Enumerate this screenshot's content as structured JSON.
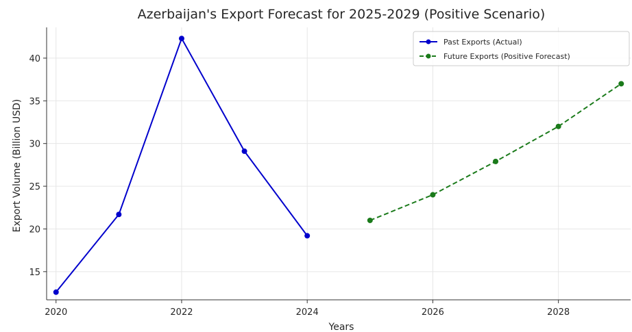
{
  "chart_data": {
    "type": "line",
    "title": "Azerbaijan's Export Forecast for 2025-2029 (Positive Scenario)",
    "xlabel": "Years",
    "ylabel": "Export Volume (Billion USD)",
    "xlim": [
      2019.85,
      2029.15
    ],
    "ylim": [
      11.7,
      43.6
    ],
    "xticks": [
      2020,
      2022,
      2024,
      2026,
      2028
    ],
    "yticks": [
      15,
      20,
      25,
      30,
      35,
      40
    ],
    "grid": true,
    "legend_position": "top-right",
    "series": [
      {
        "name": "Past Exports (Actual)",
        "color": "#0000cc",
        "line_style": "solid",
        "marker": "circle",
        "x": [
          2020,
          2021,
          2022,
          2023,
          2024
        ],
        "y": [
          12.6,
          21.7,
          42.3,
          29.1,
          19.2
        ]
      },
      {
        "name": "Future Exports (Positive Forecast)",
        "color": "#1a7a1a",
        "line_style": "dashed",
        "marker": "circle",
        "x": [
          2025,
          2026,
          2027,
          2028,
          2029
        ],
        "y": [
          21.0,
          24.0,
          27.9,
          32.0,
          37.0
        ]
      }
    ]
  }
}
